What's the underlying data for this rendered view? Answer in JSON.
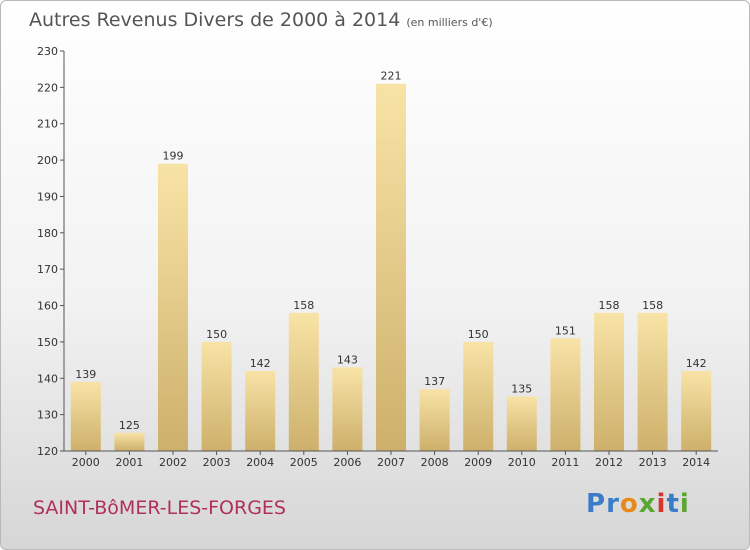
{
  "title": "Autres Revenus Divers de 2000 à 2014",
  "subtitle": "(en milliers d'€)",
  "commune": "SAINT-BôMER-LES-FORGES",
  "logo": {
    "text": "Proxiti",
    "letters": [
      {
        "ch": "P",
        "color": "#3a7cc7"
      },
      {
        "ch": "r",
        "color": "#3a7cc7"
      },
      {
        "ch": "o",
        "color": "#e8891a"
      },
      {
        "ch": "x",
        "color": "#5aa632"
      },
      {
        "ch": "i",
        "color": "#d9342b"
      },
      {
        "ch": "t",
        "color": "#3a7cc7"
      },
      {
        "ch": "i",
        "color": "#5aa632"
      }
    ]
  },
  "colors": {
    "bar_top": "#f8e3a6",
    "bar_bottom": "#cdb06b",
    "axis": "#555555"
  },
  "chart_data": {
    "type": "bar",
    "categories": [
      "2000",
      "2001",
      "2002",
      "2003",
      "2004",
      "2005",
      "2006",
      "2007",
      "2008",
      "2009",
      "2010",
      "2011",
      "2012",
      "2013",
      "2014"
    ],
    "values": [
      139,
      125,
      199,
      150,
      142,
      158,
      143,
      221,
      137,
      150,
      135,
      151,
      158,
      158,
      142
    ],
    "ylim": [
      120,
      230
    ],
    "yticks": [
      120,
      130,
      140,
      150,
      160,
      170,
      180,
      190,
      200,
      210,
      220,
      230
    ],
    "grid": false,
    "legend": "none"
  }
}
